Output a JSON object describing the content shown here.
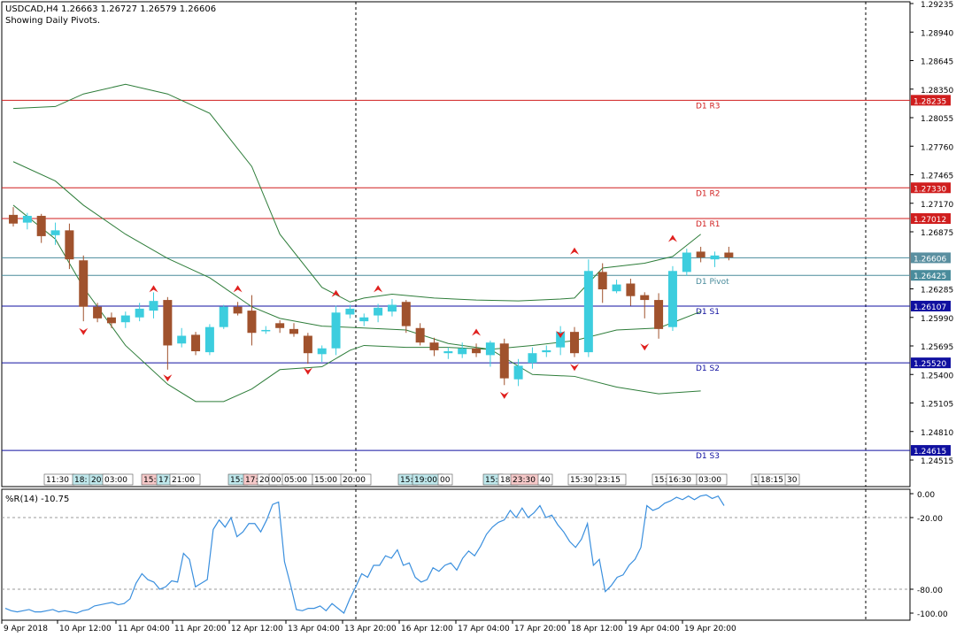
{
  "header": {
    "symbol_line": "USDCAD,H4  1.26663 1.26727 1.26579 1.26606",
    "subtitle": "Showing Daily Pivots."
  },
  "indicator": {
    "label": "%R(14) -10.75"
  },
  "colors": {
    "bull": "#3ccdde",
    "bear": "#a0522d",
    "band": "#2e7d3a",
    "resistance": "#d01e1e",
    "support": "#1010a0",
    "pivot": "#4a8c9c",
    "wpr": "#3a8fde",
    "fractal": "#e0201e"
  },
  "chart_data": [
    {
      "type": "candlestick",
      "title": "USDCAD,H4",
      "y_range": [
        1.243,
        1.2935
      ],
      "y_ticks": [
        "1.29235",
        "1.28940",
        "1.28645",
        "1.28350",
        "1.28055",
        "1.27760",
        "1.27465",
        "1.27170",
        "1.26875",
        "1.26285",
        "1.25990",
        "1.25695",
        "1.25400",
        "1.25105",
        "1.24810",
        "1.24515"
      ],
      "x_ticks": [
        "9 Apr 2018",
        "10 Apr 12:00",
        "11 Apr 04:00",
        "11 Apr 20:00",
        "12 Apr 12:00",
        "13 Apr 04:00",
        "13 Apr 20:00",
        "16 Apr 12:00",
        "17 Apr 04:00",
        "17 Apr 20:00",
        "18 Apr 12:00",
        "19 Apr 04:00",
        "19 Apr 20:00"
      ],
      "session_labels": [
        {
          "text": "11:30",
          "c": "#ffffff"
        },
        {
          "text": "18:",
          "c": "#bfe8ec"
        },
        {
          "text": "20:",
          "c": "#bfe8ec"
        },
        {
          "text": "03:00",
          "c": "#ffffff"
        },
        {
          "text": "15:",
          "c": "#f6c9c9"
        },
        {
          "text": "17:",
          "c": "#bfe8ec"
        },
        {
          "text": "21:00",
          "c": "#ffffff"
        },
        {
          "text": "15:",
          "c": "#bfe8ec"
        },
        {
          "text": "17:",
          "c": "#f6c9c9"
        },
        {
          "text": "20:",
          "c": "#ffffff"
        },
        {
          "text": "00:",
          "c": "#ffffff"
        },
        {
          "text": "05:00",
          "c": "#ffffff"
        },
        {
          "text": "15:00",
          "c": "#ffffff"
        },
        {
          "text": "20:00",
          "c": "#ffffff"
        },
        {
          "text": "15:",
          "c": "#bfe8ec"
        },
        {
          "text": "19:00",
          "c": "#bfe8ec"
        },
        {
          "text": "00",
          "c": "#ffffff"
        },
        {
          "text": "15:",
          "c": "#bfe8ec"
        },
        {
          "text": "18:",
          "c": "#ffffff"
        },
        {
          "text": "23:30",
          "c": "#f6c9c9"
        },
        {
          "text": "40",
          "c": "#ffffff"
        },
        {
          "text": "15:30",
          "c": "#ffffff"
        },
        {
          "text": "23:15",
          "c": "#ffffff"
        },
        {
          "text": "15:",
          "c": "#ffffff"
        },
        {
          "text": "16:30",
          "c": "#ffffff"
        },
        {
          "text": "03:00",
          "c": "#ffffff"
        },
        {
          "text": "1",
          "c": "#ffffff"
        },
        {
          "text": "18:15",
          "c": "#ffffff"
        },
        {
          "text": "30",
          "c": "#ffffff"
        }
      ],
      "pivot_lines": [
        {
          "name": "D1 R3",
          "value": 1.28235,
          "label": "1.28235",
          "kind": "resistance"
        },
        {
          "name": "D1 R2",
          "value": 1.2733,
          "label": "1.27330",
          "kind": "resistance"
        },
        {
          "name": "D1 R1",
          "value": 1.27012,
          "label": "1.27012",
          "kind": "resistance"
        },
        {
          "name": "",
          "value": 1.26606,
          "label": "1.26606",
          "kind": "current"
        },
        {
          "name": "D1 Pivot",
          "value": 1.26425,
          "label": "1.26425",
          "kind": "pivot"
        },
        {
          "name": "D1 S1",
          "value": 1.26107,
          "label": "1.26107",
          "kind": "support"
        },
        {
          "name": "D1 S2",
          "value": 1.2552,
          "label": "1.25520",
          "kind": "support"
        },
        {
          "name": "D1 S3",
          "value": 1.24615,
          "label": "1.24615",
          "kind": "support"
        }
      ],
      "candles": [
        [
          1.2705,
          1.2713,
          1.2693,
          1.2696
        ],
        [
          1.2697,
          1.2707,
          1.269,
          1.2704
        ],
        [
          1.2704,
          1.2706,
          1.2676,
          1.2683
        ],
        [
          1.2684,
          1.2697,
          1.2674,
          1.2689
        ],
        [
          1.2689,
          1.2696,
          1.2649,
          1.2659
        ],
        [
          1.2658,
          1.2663,
          1.2595,
          1.261
        ],
        [
          1.261,
          1.2614,
          1.2594,
          1.2598
        ],
        [
          1.2599,
          1.2604,
          1.2588,
          1.2593
        ],
        [
          1.2594,
          1.2605,
          1.2588,
          1.2601
        ],
        [
          1.2599,
          1.2614,
          1.2595,
          1.2608
        ],
        [
          1.2606,
          1.2625,
          1.2598,
          1.2616
        ],
        [
          1.2617,
          1.262,
          1.2545,
          1.257
        ],
        [
          1.2572,
          1.2588,
          1.2568,
          1.258
        ],
        [
          1.2581,
          1.2584,
          1.256,
          1.2564
        ],
        [
          1.2563,
          1.2592,
          1.256,
          1.2589
        ],
        [
          1.2589,
          1.2612,
          1.2587,
          1.261
        ],
        [
          1.261,
          1.2615,
          1.2601,
          1.2603
        ],
        [
          1.2606,
          1.2622,
          1.257,
          1.2583
        ],
        [
          1.2586,
          1.259,
          1.2582,
          1.2586
        ],
        [
          1.2593,
          1.2596,
          1.2583,
          1.2588
        ],
        [
          1.2587,
          1.2593,
          1.2579,
          1.2582
        ],
        [
          1.258,
          1.2583,
          1.2551,
          1.2562
        ],
        [
          1.2561,
          1.257,
          1.2553,
          1.2567
        ],
        [
          1.2567,
          1.2611,
          1.256,
          1.2604
        ],
        [
          1.2602,
          1.2612,
          1.2598,
          1.2608
        ],
        [
          1.2595,
          1.2603,
          1.259,
          1.2599
        ],
        [
          1.2601,
          1.2613,
          1.2594,
          1.2609
        ],
        [
          1.2605,
          1.2618,
          1.26,
          1.2612
        ],
        [
          1.2615,
          1.2617,
          1.2583,
          1.259
        ],
        [
          1.2588,
          1.2593,
          1.257,
          1.2573
        ],
        [
          1.2573,
          1.2578,
          1.2559,
          1.2565
        ],
        [
          1.2562,
          1.2568,
          1.2556,
          1.2564
        ],
        [
          1.2561,
          1.2573,
          1.2557,
          1.2567
        ],
        [
          1.2567,
          1.2572,
          1.2558,
          1.2562
        ],
        [
          1.256,
          1.2575,
          1.2548,
          1.2573
        ],
        [
          1.2572,
          1.2577,
          1.2529,
          1.2536
        ],
        [
          1.2535,
          1.2556,
          1.2528,
          1.2549
        ],
        [
          1.2552,
          1.2568,
          1.2546,
          1.2562
        ],
        [
          1.2563,
          1.257,
          1.2558,
          1.2565
        ],
        [
          1.2568,
          1.259,
          1.256,
          1.2584
        ],
        [
          1.2584,
          1.2589,
          1.2558,
          1.2562
        ],
        [
          1.2563,
          1.2659,
          1.2558,
          1.2647
        ],
        [
          1.2646,
          1.2655,
          1.2614,
          1.2628
        ],
        [
          1.2626,
          1.2638,
          1.2624,
          1.2633
        ],
        [
          1.2634,
          1.2639,
          1.2611,
          1.2621
        ],
        [
          1.2622,
          1.2625,
          1.2598,
          1.2617
        ],
        [
          1.2617,
          1.2624,
          1.2577,
          1.2587
        ],
        [
          1.2589,
          1.2652,
          1.2585,
          1.2647
        ],
        [
          1.2646,
          1.267,
          1.2642,
          1.2666
        ],
        [
          1.2667,
          1.2672,
          1.2656,
          1.2661
        ],
        [
          1.2659,
          1.2667,
          1.2651,
          1.2663
        ],
        [
          1.2666,
          1.2672,
          1.2658,
          1.2661
        ]
      ],
      "bands": {
        "upper": [
          [
            0,
            1.2815
          ],
          [
            3,
            1.2817
          ],
          [
            5,
            1.283
          ],
          [
            8,
            1.284
          ],
          [
            11,
            1.283
          ],
          [
            14,
            1.281
          ],
          [
            17,
            1.2755
          ],
          [
            19,
            1.2685
          ],
          [
            22,
            1.263
          ],
          [
            24,
            1.2615
          ],
          [
            25,
            1.2619
          ],
          [
            27,
            1.2623
          ],
          [
            30,
            1.2619
          ],
          [
            33,
            1.2617
          ],
          [
            36,
            1.2616
          ],
          [
            39,
            1.2618
          ],
          [
            40,
            1.2619
          ],
          [
            42,
            1.265
          ],
          [
            45,
            1.2655
          ],
          [
            47,
            1.2662
          ],
          [
            49,
            1.2685
          ]
        ],
        "middle": [
          [
            0,
            1.276
          ],
          [
            3,
            1.274
          ],
          [
            5,
            1.2715
          ],
          [
            8,
            1.2685
          ],
          [
            11,
            1.266
          ],
          [
            14,
            1.264
          ],
          [
            17,
            1.261
          ],
          [
            19,
            1.2598
          ],
          [
            22,
            1.259
          ],
          [
            25,
            1.2588
          ],
          [
            28,
            1.2586
          ],
          [
            31,
            1.2572
          ],
          [
            34,
            1.2566
          ],
          [
            37,
            1.257
          ],
          [
            40,
            1.2575
          ],
          [
            43,
            1.2586
          ],
          [
            46,
            1.2588
          ],
          [
            49,
            1.2605
          ]
        ],
        "lower": [
          [
            0,
            1.2715
          ],
          [
            3,
            1.268
          ],
          [
            5,
            1.263
          ],
          [
            8,
            1.257
          ],
          [
            11,
            1.253
          ],
          [
            13,
            1.2512
          ],
          [
            15,
            1.2512
          ],
          [
            17,
            1.2525
          ],
          [
            19,
            1.2545
          ],
          [
            22,
            1.2548
          ],
          [
            24,
            1.2565
          ],
          [
            25,
            1.257
          ],
          [
            28,
            1.2568
          ],
          [
            31,
            1.2568
          ],
          [
            34,
            1.2566
          ],
          [
            37,
            1.254
          ],
          [
            40,
            1.2538
          ],
          [
            43,
            1.2527
          ],
          [
            46,
            1.252
          ],
          [
            49,
            1.2523
          ]
        ]
      },
      "fractals_up": [
        [
          10,
          1.2625
        ],
        [
          16,
          1.2625
        ],
        [
          23,
          1.262
        ],
        [
          26,
          1.2625
        ],
        [
          33,
          1.258
        ],
        [
          40,
          1.2664
        ],
        [
          47,
          1.2677
        ]
      ],
      "fractals_down": [
        [
          5,
          1.2588
        ],
        [
          11,
          1.254
        ],
        [
          21,
          1.2547
        ],
        [
          35,
          1.2522
        ],
        [
          39,
          1.2585
        ],
        [
          40,
          1.2551
        ],
        [
          45,
          1.2572
        ]
      ]
    },
    {
      "type": "line",
      "title": "%R(14) -10.75",
      "y_range": [
        -105,
        5
      ],
      "y_ticks": [
        "0.00",
        "-20.00",
        "-80.00",
        "-100.00"
      ],
      "levels": [
        -20,
        -80
      ],
      "series": [
        {
          "name": "%R(14)",
          "values": [
            -96,
            -98,
            -99,
            -98,
            -97,
            -99,
            -99,
            -98,
            -97,
            -99,
            -98,
            -99,
            -100,
            -98,
            -97,
            -94,
            -93,
            -92,
            -91,
            -93,
            -92,
            -88,
            -75,
            -67,
            -72,
            -74,
            -80,
            -78,
            -73,
            -74,
            -50,
            -55,
            -78,
            -75,
            -72,
            -30,
            -22,
            -28,
            -20,
            -36,
            -32,
            -25,
            -25,
            -32,
            -22,
            -9,
            -7,
            -57,
            -76,
            -97,
            -98,
            -96,
            -96,
            -94,
            -98,
            -92,
            -96,
            -100,
            -88,
            -78,
            -67,
            -70,
            -60,
            -60,
            -52,
            -54,
            -47,
            -60,
            -58,
            -70,
            -74,
            -72,
            -62,
            -65,
            -60,
            -58,
            -64,
            -54,
            -48,
            -52,
            -44,
            -34,
            -28,
            -24,
            -22,
            -14,
            -20,
            -12,
            -20,
            -16,
            -10,
            -20,
            -18,
            -26,
            -32,
            -40,
            -45,
            -38,
            -25,
            -60,
            -55,
            -82,
            -77,
            -70,
            -68,
            -60,
            -55,
            -45,
            -10,
            -14,
            -12,
            -8,
            -6,
            -3,
            -5,
            -2,
            -5,
            -2,
            -1,
            -4,
            -2,
            -10
          ]
        }
      ]
    }
  ],
  "wpr_points": [
    -96,
    -98,
    -99,
    -98,
    -97,
    -99,
    -99,
    -98,
    -97,
    -99,
    -98,
    -99,
    -100,
    -98,
    -97,
    -94,
    -93,
    -92,
    -91,
    -93,
    -92,
    -88,
    -75,
    -67,
    -72,
    -74,
    -80,
    -78,
    -73,
    -74,
    -50,
    -55,
    -78,
    -75,
    -72,
    -30,
    -22,
    -28,
    -20,
    -36,
    -32,
    -25,
    -25,
    -32,
    -22,
    -9,
    -7,
    -57,
    -76,
    -97,
    -98,
    -96,
    -96,
    -94,
    -98,
    -92,
    -96,
    -100,
    -88,
    -78,
    -67,
    -70,
    -60,
    -60,
    -52,
    -54,
    -47,
    -60,
    -58,
    -70,
    -74,
    -72,
    -62,
    -65,
    -60,
    -58,
    -64,
    -54,
    -48,
    -52,
    -44,
    -34,
    -28,
    -24,
    -22,
    -14,
    -20,
    -12,
    -20,
    -16,
    -10,
    -20,
    -18,
    -26,
    -32,
    -40,
    -45,
    -38,
    -25,
    -60,
    -55,
    -82,
    -77,
    -70,
    -68,
    -60,
    -55,
    -45,
    -10,
    -14,
    -12,
    -8,
    -6,
    -3,
    -5,
    -2,
    -5,
    -2,
    -1,
    -4,
    -2,
    -10
  ]
}
